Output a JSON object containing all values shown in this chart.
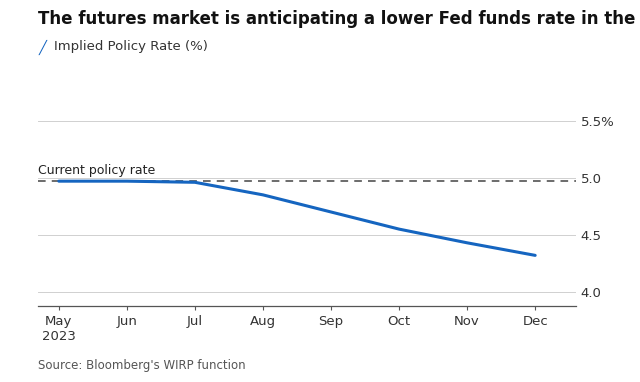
{
  "title": "The futures market is anticipating a lower Fed funds rate in the coming months",
  "subtitle": "Implied Policy Rate (%)",
  "source": "Source: Bloomberg's WIRP function",
  "line_color": "#1565C0",
  "dashed_line_color": "#444444",
  "current_policy_rate": 4.97,
  "current_policy_label": "Current policy rate",
  "x_labels": [
    "May\n2023",
    "Jun",
    "Jul",
    "Aug",
    "Sep",
    "Oct",
    "Nov",
    "Dec"
  ],
  "x_positions": [
    0,
    1,
    2,
    3,
    4,
    5,
    6,
    7
  ],
  "y_data": [
    4.97,
    4.97,
    4.96,
    4.85,
    4.7,
    4.55,
    4.43,
    4.32
  ],
  "ylim": [
    3.88,
    5.62
  ],
  "yticks": [
    4.0,
    4.5,
    5.0,
    5.5
  ],
  "ytick_labels": [
    "4.0",
    "4.5",
    "5.0",
    "5.5%"
  ],
  "background_color": "#ffffff",
  "title_fontsize": 12,
  "subtitle_fontsize": 9.5,
  "tick_fontsize": 9.5,
  "source_fontsize": 8.5,
  "grid_color": "#d0d0d0"
}
